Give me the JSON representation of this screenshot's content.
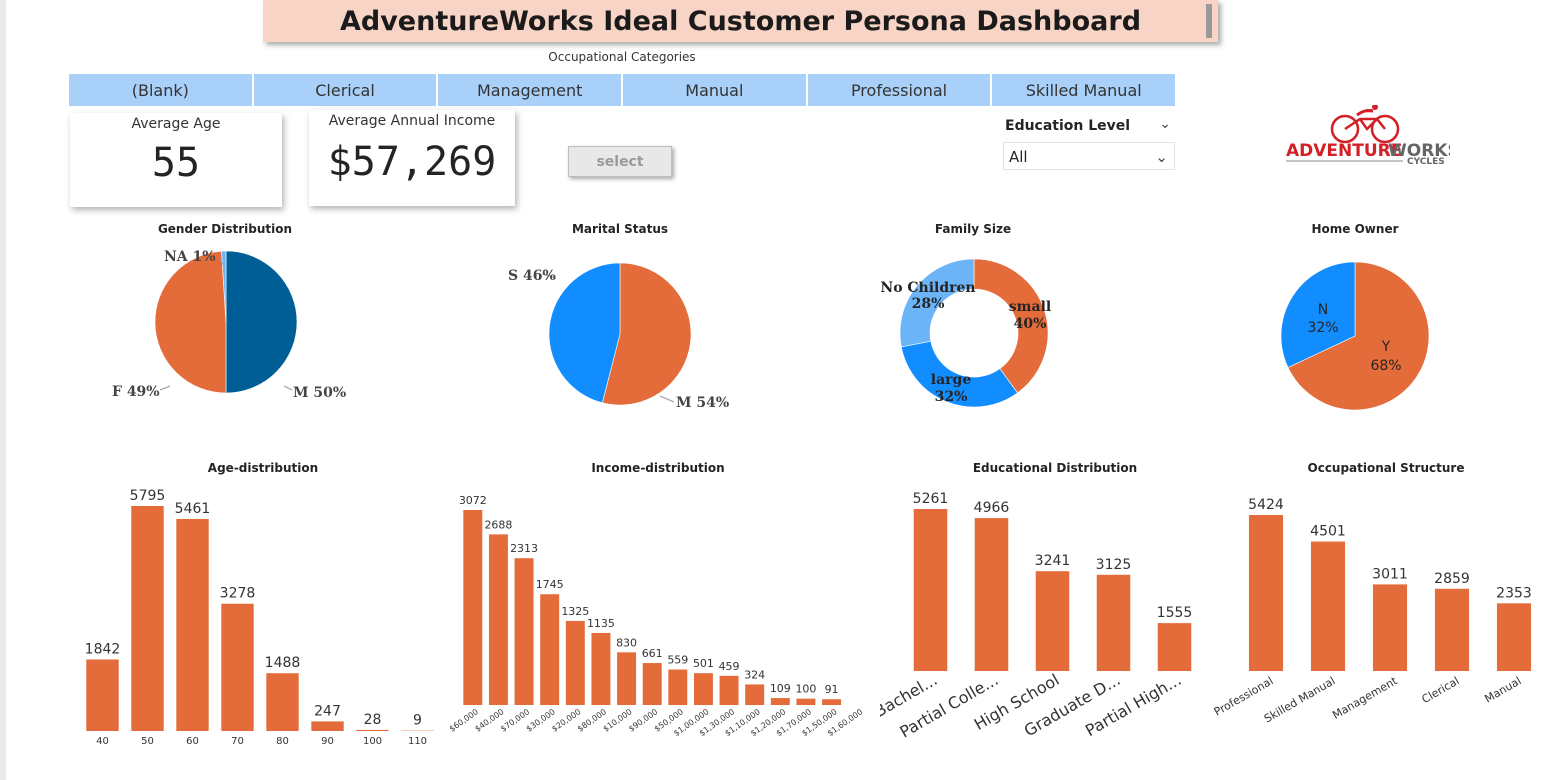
{
  "title": "AdventureWorks Ideal Customer Persona Dashboard",
  "occupation_slicer": {
    "label": "Occupational Categories",
    "options": [
      "(Blank)",
      "Clerical",
      "Management",
      "Manual",
      "Professional",
      "Skilled Manual"
    ]
  },
  "cards": {
    "avg_age": {
      "label": "Average Age",
      "value": "55"
    },
    "avg_income": {
      "label": "Average Annual Income",
      "value": "$57,269"
    }
  },
  "select_button": "select",
  "education_filter": {
    "label": "Education Level",
    "value": "All"
  },
  "logo": {
    "brand": "ADVENTURE",
    "brand2": "WORKS",
    "sub": "CYCLES"
  },
  "colors": {
    "orange": "#E46C3A",
    "blue": "#118DFF",
    "darkblue": "#005E96",
    "lightblue": "#6CB4F8",
    "tile": "#A8D0F8"
  },
  "chart_data": [
    {
      "type": "pie",
      "title": "Gender Distribution",
      "labels": [
        "M",
        "F",
        "NA"
      ],
      "values": [
        50,
        49,
        1
      ],
      "display": [
        "M 50%",
        "F 49%",
        "NA 1%"
      ]
    },
    {
      "type": "pie",
      "title": "Marital Status",
      "labels": [
        "M",
        "S"
      ],
      "values": [
        54,
        46
      ],
      "display": [
        "M 54%",
        "S 46%"
      ]
    },
    {
      "type": "donut",
      "title": "Family Size",
      "labels": [
        "small",
        "large",
        "No Children"
      ],
      "values": [
        40,
        32,
        28
      ],
      "display": [
        "40%",
        "32%",
        "28%"
      ]
    },
    {
      "type": "pie",
      "title": "Home Owner",
      "labels": [
        "Y",
        "N"
      ],
      "values": [
        68,
        32
      ],
      "display": [
        "68%",
        "32%"
      ]
    },
    {
      "type": "bar",
      "title": "Age-distribution",
      "categories": [
        "40",
        "50",
        "60",
        "70",
        "80",
        "90",
        "100",
        "110"
      ],
      "values": [
        1842,
        5795,
        5461,
        3278,
        1488,
        247,
        28,
        9
      ]
    },
    {
      "type": "bar",
      "title": "Income-distribution",
      "categories": [
        "$60,000",
        "$40,000",
        "$70,000",
        "$30,000",
        "$20,000",
        "$80,000",
        "$10,000",
        "$90,000",
        "$50,000",
        "$1,00,000",
        "$1,30,000",
        "$1,10,000",
        "$1,20,000",
        "$1,70,000",
        "$1,50,000",
        "$1,60,000"
      ],
      "values": [
        3072,
        2688,
        2313,
        1745,
        1325,
        1135,
        830,
        661,
        559,
        501,
        459,
        324,
        109,
        100,
        91,
        0
      ]
    },
    {
      "type": "bar",
      "title": "Educational Distribution",
      "categories": [
        "Bachel...",
        "Partial Colle...",
        "High School",
        "Graduate D...",
        "Partial High..."
      ],
      "values": [
        5261,
        4966,
        3241,
        3125,
        1555
      ]
    },
    {
      "type": "bar",
      "title": "Occupational Structure",
      "categories": [
        "Professional",
        "Skilled Manual",
        "Management",
        "Clerical",
        "Manual"
      ],
      "values": [
        5424,
        4501,
        3011,
        2859,
        2353
      ]
    }
  ]
}
